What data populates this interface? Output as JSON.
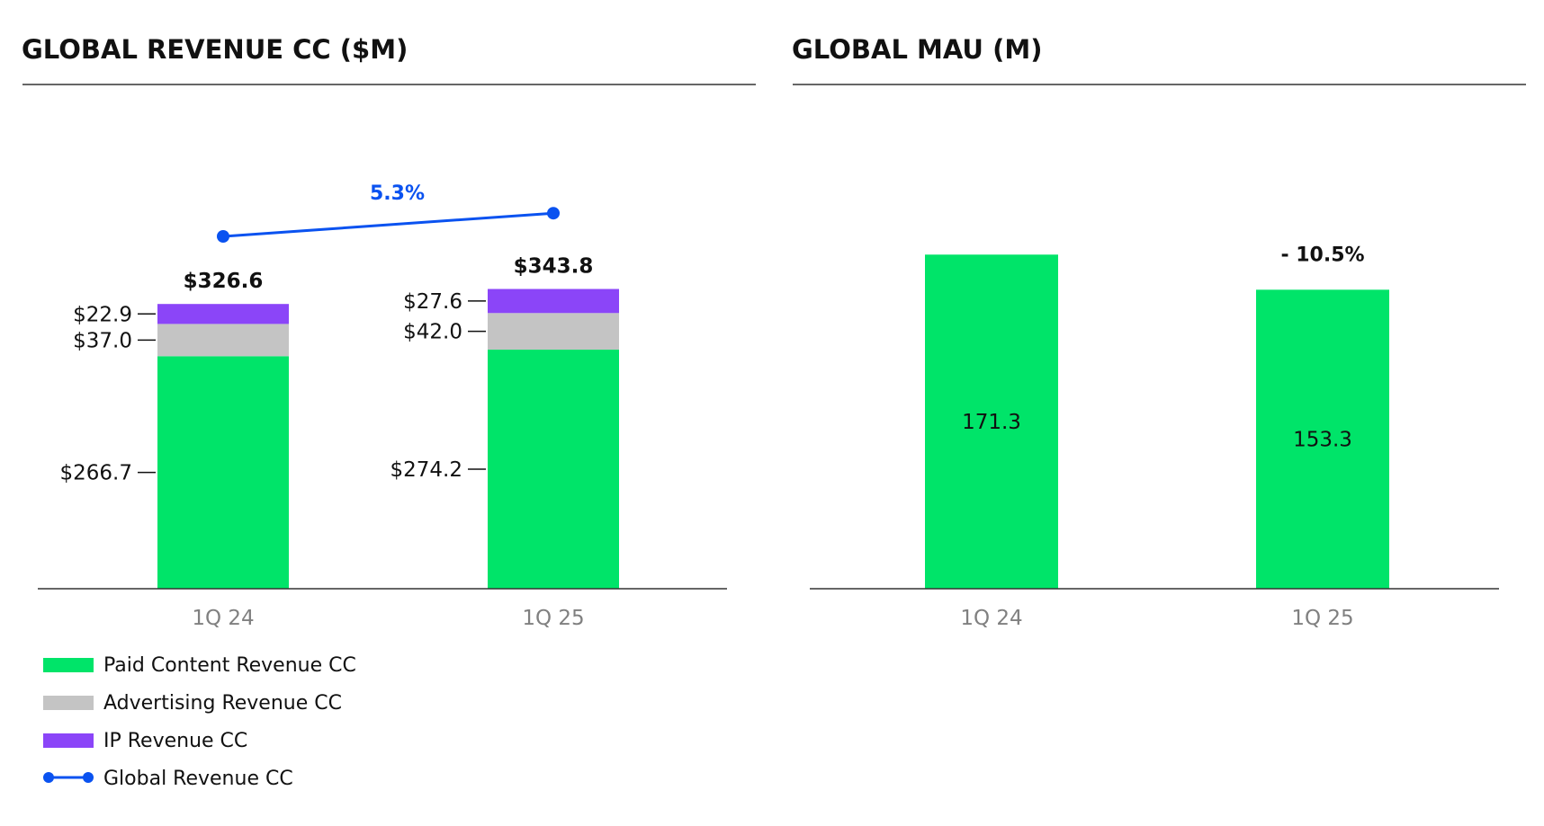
{
  "colors": {
    "paid": "#00E469",
    "advertising": "#C4C4C4",
    "ip": "#8B45F8",
    "line": "#0A52F0",
    "axis": "#333333",
    "tick_text": "#808080"
  },
  "chart_data": [
    {
      "type": "bar",
      "stacked": true,
      "title": "GLOBAL REVENUE CC ($M)",
      "categories": [
        "1Q 24",
        "1Q 25"
      ],
      "series": [
        {
          "name": "Paid Content Revenue CC",
          "values": [
            266.7,
            274.2
          ],
          "labels": [
            "$266.7",
            "$274.2"
          ]
        },
        {
          "name": "Advertising Revenue CC",
          "values": [
            37.0,
            42.0
          ],
          "labels": [
            "$37.0",
            "$42.0"
          ]
        },
        {
          "name": "IP Revenue CC",
          "values": [
            22.9,
            27.6
          ],
          "labels": [
            "$22.9",
            "$27.6"
          ]
        }
      ],
      "totals": {
        "values": [
          326.6,
          343.8
        ],
        "labels": [
          "$326.6",
          "$343.8"
        ]
      },
      "line": {
        "name": "Global Revenue CC",
        "values": [
          326.6,
          343.8
        ],
        "growth_label": "5.3%"
      },
      "legend_position": "bottom-left",
      "grid": false
    },
    {
      "type": "bar",
      "title": "GLOBAL MAU (M)",
      "categories": [
        "1Q 24",
        "1Q 25"
      ],
      "values": [
        171.3,
        153.3
      ],
      "labels": [
        "171.3",
        "153.3"
      ],
      "growth_label": "- 10.5%",
      "grid": false
    }
  ]
}
